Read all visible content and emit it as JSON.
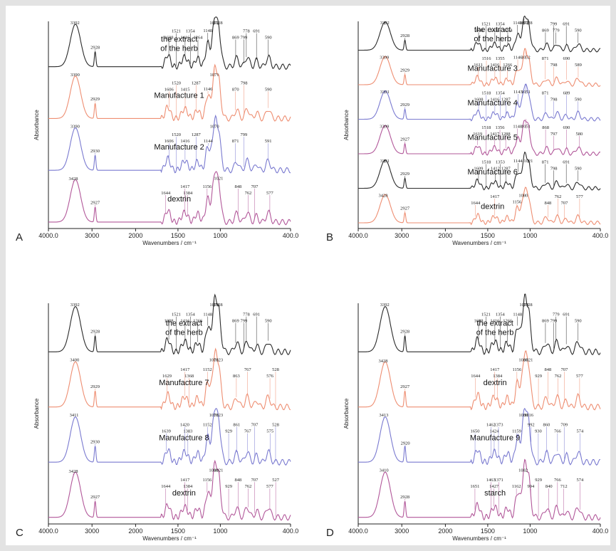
{
  "axes": {
    "x_label": "Wavenumbers / cm⁻¹",
    "y_label": "Absorbance",
    "x_ticks": [
      "4000.0",
      "3000",
      "2000",
      "1500",
      "1000",
      "400.0"
    ]
  },
  "colors": {
    "black": "#2b2b2b",
    "orange": "#ee8e72",
    "blue": "#7a7ad0",
    "purple": "#b2589a",
    "axis": "#222222"
  },
  "chart_data": [
    {
      "panel": "A",
      "type": "line",
      "x_range": [
        4000,
        400
      ],
      "series": [
        {
          "name": "the extract|of the herb",
          "color": "black",
          "peaks": [
            3392,
            2928,
            1608,
            1521,
            1416,
            1354,
            1264,
            1148,
            1072,
            1028,
            869,
            778,
            799,
            691,
            590
          ],
          "peak_labels": [
            "3392",
            "2928",
            "1608",
            "1521",
            "1416",
            "1354",
            "1264",
            "1148",
            "1072",
            "1028",
            "869",
            "778",
            "799",
            "691",
            "590"
          ]
        },
        {
          "name": "Manufacture 1",
          "color": "orange",
          "peaks": [
            3390,
            2929,
            1606,
            1520,
            1415,
            1287,
            1146,
            1071,
            870,
            798,
            590
          ],
          "peak_labels": [
            "3390",
            "2929",
            "1606",
            "1520",
            "1415",
            "1287",
            "1146",
            "1071",
            "870",
            "798",
            "590"
          ]
        },
        {
          "name": "Manufacture 2",
          "color": "blue",
          "peaks": [
            3390,
            2930,
            1606,
            1520,
            1416,
            1287,
            1144,
            1070,
            871,
            799,
            591
          ],
          "peak_labels": [
            "3390",
            "2930",
            "1606",
            "1520",
            "1416",
            "1287",
            "1144",
            "1070",
            "871",
            "799",
            "591"
          ]
        },
        {
          "name": "dextrin",
          "color": "purple",
          "peaks": [
            3428,
            2927,
            1644,
            1417,
            1384,
            1156,
            1021,
            848,
            762,
            707,
            577
          ],
          "peak_labels": [
            "3428",
            "2927",
            "1644",
            "1417",
            "1384",
            "1156",
            "1021",
            "848",
            "762",
            "707",
            "577"
          ]
        }
      ]
    },
    {
      "panel": "B",
      "type": "line",
      "x_range": [
        4000,
        400
      ],
      "series": [
        {
          "name": "the extract|of the herb",
          "color": "black",
          "peaks": [
            3392,
            2928,
            1608,
            1521,
            1416,
            1354,
            1264,
            1148,
            1072,
            1028,
            869,
            799,
            779,
            691,
            590
          ],
          "peak_labels": [
            "3392",
            "2928",
            "1608",
            "1521",
            "1416",
            "1354",
            "1264",
            "1148",
            "1072",
            "1028",
            "869",
            "799",
            "779",
            "691",
            "590"
          ]
        },
        {
          "name": "Manufacture 3",
          "color": "orange",
          "peaks": [
            3399,
            2929,
            1611,
            1516,
            1416,
            1355,
            1266,
            1146,
            1052,
            871,
            798,
            690,
            589
          ],
          "peak_labels": [
            "3399",
            "2929",
            "1611",
            "1516",
            "1416",
            "1355",
            "1266",
            "1146",
            "1052",
            "871",
            "798",
            "690",
            "589"
          ]
        },
        {
          "name": "Manufacture 4",
          "color": "blue",
          "peaks": [
            3391,
            2929,
            1608,
            1518,
            1416,
            1354,
            1287,
            1143,
            1051,
            871,
            798,
            689,
            590
          ],
          "peak_labels": [
            "3391",
            "2929",
            "1608",
            "1518",
            "1416",
            "1354",
            "1287",
            "1143",
            "1051",
            "871",
            "798",
            "689",
            "590"
          ]
        },
        {
          "name": "Manufacture 5",
          "color": "purple",
          "peaks": [
            3399,
            2927,
            1619,
            1518,
            1417,
            1356,
            1288,
            1148,
            1051,
            868,
            797,
            690,
            580
          ],
          "peak_labels": [
            "3399",
            "2927",
            "1619",
            "1518",
            "1417",
            "1356",
            "1288",
            "1148",
            "1051",
            "868",
            "797",
            "690",
            "580"
          ]
        },
        {
          "name": "Manufacture 6",
          "color": "black",
          "peaks": [
            3391,
            2929,
            1609,
            1518,
            1412,
            1353,
            1287,
            1144,
            1021,
            871,
            798,
            691,
            590
          ],
          "peak_labels": [
            "3391",
            "2929",
            "1609",
            "1518",
            "1412",
            "1353",
            "1287",
            "1144",
            "1021",
            "871",
            "798",
            "691",
            "590"
          ]
        },
        {
          "name": "dextrin",
          "color": "orange",
          "peaks": [
            3428,
            2927,
            1644,
            1417,
            1156,
            1080,
            848,
            762,
            707,
            577
          ],
          "peak_labels": [
            "3428",
            "2927",
            "1644",
            "1417",
            "1156",
            "1080",
            "848",
            "762",
            "707",
            "577"
          ]
        }
      ]
    },
    {
      "panel": "C",
      "type": "line",
      "x_range": [
        4000,
        400
      ],
      "series": [
        {
          "name": "the extract|of the herb",
          "color": "black",
          "peaks": [
            3392,
            2928,
            1608,
            1521,
            1416,
            1354,
            1266,
            1148,
            1072,
            1028,
            869,
            778,
            799,
            691,
            590
          ],
          "peak_labels": [
            "3392",
            "2928",
            "1608",
            "1521",
            "1416",
            "1354",
            "1266",
            "1148",
            "1072",
            "1028",
            "869",
            "778",
            "799",
            "691",
            "590"
          ]
        },
        {
          "name": "Manufacture 7",
          "color": "orange",
          "peaks": [
            3400,
            2929,
            1629,
            1417,
            1368,
            1152,
            1078,
            1023,
            863,
            767,
            576,
            528
          ],
          "peak_labels": [
            "3400",
            "2929",
            "1629",
            "1417",
            "1368",
            "1152",
            "1078",
            "1023",
            "863",
            "767",
            "576",
            "528"
          ]
        },
        {
          "name": "Manufacture 8",
          "color": "blue",
          "peaks": [
            3411,
            2930,
            1639,
            1420,
            1383,
            1152,
            1078,
            1023,
            929,
            861,
            767,
            707,
            575,
            528
          ],
          "peak_labels": [
            "3411",
            "2930",
            "1639",
            "1420",
            "1383",
            "1152",
            "1078",
            "1023",
            "929",
            "861",
            "767",
            "707",
            "575",
            "528"
          ]
        },
        {
          "name": "dextrin",
          "color": "purple",
          "peaks": [
            3428,
            2927,
            1644,
            1417,
            1384,
            1156,
            1080,
            1021,
            929,
            848,
            762,
            707,
            577,
            527
          ],
          "peak_labels": [
            "3428",
            "2927",
            "1644",
            "1417",
            "1384",
            "1156",
            "1080",
            "1021",
            "929",
            "848",
            "762",
            "707",
            "577",
            "527"
          ]
        }
      ]
    },
    {
      "panel": "D",
      "type": "line",
      "x_range": [
        4000,
        400
      ],
      "series": [
        {
          "name": "the extract|of the herb",
          "color": "black",
          "peaks": [
            3392,
            2928,
            1608,
            1521,
            1416,
            1354,
            1266,
            1148,
            1072,
            1028,
            869,
            779,
            799,
            691,
            590
          ],
          "peak_labels": [
            "3392",
            "2928",
            "1608",
            "1521",
            "1416",
            "1354",
            "1266",
            "1148",
            "1072",
            "1028",
            "869",
            "779",
            "799",
            "691",
            "590"
          ]
        },
        {
          "name": "dextrin",
          "color": "orange",
          "peaks": [
            3428,
            2927,
            1644,
            1417,
            1384,
            1156,
            1080,
            1021,
            929,
            848,
            762,
            707,
            577
          ],
          "peak_labels": [
            "3428",
            "2927",
            "1644",
            "1417",
            "1384",
            "1156",
            "1080",
            "1021",
            "929",
            "848",
            "762",
            "707",
            "577"
          ]
        },
        {
          "name": "Manufacture 9",
          "color": "blue",
          "peaks": [
            3413,
            2920,
            1650,
            1462,
            1424,
            1373,
            1159,
            1080,
            1016,
            992,
            930,
            860,
            766,
            709,
            574
          ],
          "peak_labels": [
            "3413",
            "2920",
            "1650",
            "1462",
            "1424",
            "1373",
            "1159",
            "1080",
            "1016",
            "992",
            "930",
            "860",
            "766",
            "709",
            "574"
          ]
        },
        {
          "name": "starch",
          "color": "purple",
          "peaks": [
            3410,
            2928,
            1651,
            1463,
            1427,
            1371,
            1162,
            1082,
            994,
            929,
            840,
            766,
            712,
            574
          ],
          "peak_labels": [
            "3410",
            "2928",
            "1651",
            "1463",
            "1427",
            "1371",
            "1162",
            "1082",
            "994",
            "929",
            "840",
            "766",
            "712",
            "574"
          ]
        }
      ]
    }
  ]
}
